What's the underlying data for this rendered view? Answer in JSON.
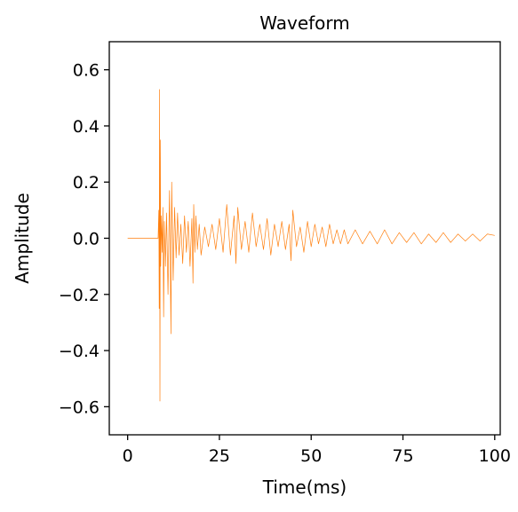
{
  "chart_data": {
    "type": "line",
    "title": "Waveform",
    "xlabel": "Time(ms)",
    "ylabel": "Amplitude",
    "xlim": [
      -5,
      101.5
    ],
    "ylim": [
      -0.7,
      0.7
    ],
    "x_ticks": [
      0,
      25,
      50,
      75,
      100
    ],
    "x_tick_labels": [
      "0",
      "25",
      "50",
      "75",
      "100"
    ],
    "y_ticks": [
      0.6,
      0.4,
      0.2,
      0.0,
      -0.2,
      -0.4,
      -0.6
    ],
    "y_tick_labels": [
      "0.6",
      "0.4",
      "0.2",
      "0.0",
      "−0.2",
      "−0.4",
      "−0.6"
    ],
    "grid": false,
    "series": [
      {
        "color": "#ff7f0e",
        "line_width": 0.7,
        "x": [
          0,
          8.3,
          8.5,
          8.6,
          8.7,
          8.8,
          8.9,
          9.0,
          9.2,
          9.4,
          9.6,
          9.8,
          10.0,
          10.3,
          10.6,
          11.0,
          11.4,
          11.8,
          12.0,
          12.4,
          12.8,
          13.2,
          13.6,
          14.0,
          14.5,
          15.0,
          15.5,
          16.0,
          16.5,
          17.0,
          17.5,
          17.8,
          18.0,
          18.3,
          18.6,
          19.0,
          19.5,
          20.0,
          21.0,
          22.0,
          23.0,
          24.0,
          25.0,
          26.0,
          27.0,
          28.0,
          29.0,
          29.5,
          30.0,
          31.0,
          32.0,
          33.0,
          34.0,
          35.0,
          36.0,
          37.0,
          38.0,
          39.0,
          40.0,
          41.0,
          42.0,
          43.0,
          44.0,
          44.5,
          45.0,
          46.0,
          47.0,
          48.0,
          49.0,
          50.0,
          51.0,
          52.0,
          53.0,
          54.0,
          55.0,
          56.0,
          57.0,
          58.0,
          59.0,
          60.0,
          62.0,
          64.0,
          66.0,
          68.0,
          70.0,
          72.0,
          74.0,
          76.0,
          78.0,
          80.0,
          82.0,
          84.0,
          86.0,
          88.0,
          90.0,
          92.0,
          94.0,
          96.0,
          98.0,
          100.0
        ],
        "y": [
          0.0,
          0.0,
          0.1,
          -0.25,
          0.53,
          -0.58,
          0.35,
          -0.1,
          0.08,
          -0.05,
          0.11,
          -0.28,
          0.06,
          -0.1,
          0.09,
          -0.2,
          0.17,
          -0.34,
          0.2,
          -0.15,
          0.11,
          -0.07,
          0.09,
          -0.06,
          0.05,
          -0.09,
          0.08,
          -0.05,
          0.06,
          -0.1,
          0.07,
          -0.16,
          0.12,
          -0.05,
          0.08,
          -0.04,
          0.05,
          -0.06,
          0.04,
          -0.03,
          0.05,
          -0.04,
          0.07,
          -0.05,
          0.12,
          -0.06,
          0.08,
          -0.09,
          0.11,
          -0.04,
          0.06,
          -0.05,
          0.09,
          -0.03,
          0.05,
          -0.04,
          0.07,
          -0.06,
          0.05,
          -0.03,
          0.06,
          -0.04,
          0.05,
          -0.08,
          0.1,
          -0.03,
          0.04,
          -0.05,
          0.06,
          -0.03,
          0.05,
          -0.02,
          0.04,
          -0.03,
          0.05,
          -0.02,
          0.03,
          -0.02,
          0.03,
          -0.02,
          0.03,
          -0.02,
          0.025,
          -0.02,
          0.03,
          -0.02,
          0.02,
          -0.015,
          0.02,
          -0.02,
          0.015,
          -0.015,
          0.02,
          -0.015,
          0.015,
          -0.01,
          0.015,
          -0.01,
          0.015,
          0.01
        ]
      }
    ]
  }
}
